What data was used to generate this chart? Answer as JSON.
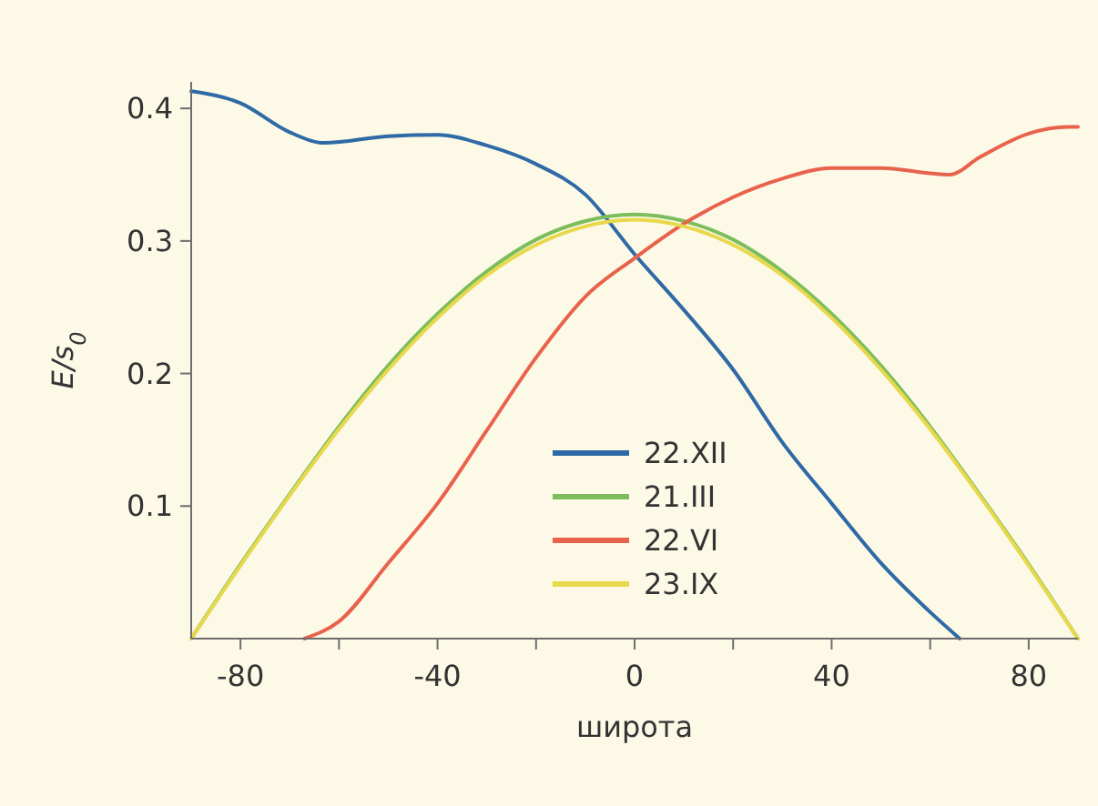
{
  "chart_data": {
    "type": "line",
    "xlabel": "широта",
    "ylabel": "E/s$_{0}$",
    "xlim": [
      -90,
      90
    ],
    "xticks": [
      {
        "value": -80,
        "label": "-80"
      },
      {
        "value": -60,
        "label": null
      },
      {
        "value": -40,
        "label": "-40"
      },
      {
        "value": -20,
        "label": null
      },
      0,
      {
        "value": 20,
        "label": null
      },
      40,
      {
        "value": 60,
        "label": null
      },
      80
    ],
    "ylim": [
      0,
      0.42
    ],
    "yticks": [
      0.1,
      0.2,
      0.3,
      0.4
    ],
    "grid": false,
    "legend": "bottom",
    "marker": "none",
    "line_style": "solid",
    "series": [
      {
        "name": "22.XII",
        "color": "#2f6aa6",
        "x": [
          -90,
          -80,
          -70,
          -63,
          -50,
          -40,
          -30,
          -20,
          -10,
          0,
          10,
          20,
          30,
          40,
          50,
          60,
          66
        ],
        "values": [
          0.413,
          0.404,
          0.382,
          0.374,
          0.379,
          0.38,
          0.372,
          0.358,
          0.335,
          0.29,
          0.248,
          0.203,
          0.148,
          0.102,
          0.057,
          0.02,
          0
        ]
      },
      {
        "name": "21.III",
        "color": "#7cbd5c",
        "x": [
          -90,
          -80,
          -70,
          -60,
          -50,
          -40,
          -30,
          -20,
          -10,
          0,
          10,
          20,
          30,
          40,
          50,
          60,
          70,
          80,
          90
        ],
        "values": [
          0,
          0.056,
          0.109,
          0.16,
          0.206,
          0.245,
          0.277,
          0.301,
          0.315,
          0.32,
          0.315,
          0.301,
          0.277,
          0.245,
          0.206,
          0.16,
          0.109,
          0.056,
          0
        ]
      },
      {
        "name": "22.VI",
        "color": "#e8624c",
        "x": [
          -67,
          -60,
          -50,
          -40,
          -30,
          -20,
          -10,
          0,
          10,
          20,
          30,
          40,
          50,
          60,
          64,
          70,
          80,
          88,
          90
        ],
        "values": [
          0,
          0.013,
          0.057,
          0.102,
          0.157,
          0.212,
          0.258,
          0.287,
          0.313,
          0.333,
          0.347,
          0.355,
          0.355,
          0.351,
          0.35,
          0.363,
          0.381,
          0.386,
          0.386
        ]
      },
      {
        "name": "23.IX",
        "color": "#e8d84c",
        "x": [
          -90,
          -80,
          -70,
          -60,
          -50,
          -40,
          -30,
          -20,
          -10,
          0,
          10,
          20,
          30,
          40,
          50,
          60,
          70,
          80,
          90
        ],
        "values": [
          0,
          0.055,
          0.108,
          0.158,
          0.203,
          0.242,
          0.274,
          0.297,
          0.311,
          0.316,
          0.311,
          0.297,
          0.274,
          0.242,
          0.203,
          0.158,
          0.108,
          0.055,
          0
        ]
      }
    ]
  }
}
